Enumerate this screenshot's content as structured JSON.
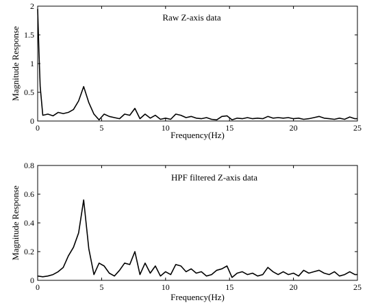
{
  "chart_data": [
    {
      "type": "line",
      "title": "",
      "annotation": "Raw Z-axis data",
      "xlabel": "Frequency(Hz)",
      "ylabel": "Magnitude Response",
      "xlim": [
        0,
        25
      ],
      "ylim": [
        0,
        2
      ],
      "xticks": [
        0,
        5,
        10,
        15,
        20,
        25
      ],
      "yticks": [
        0,
        0.5,
        1,
        1.5,
        2
      ],
      "xtick_labels": [
        "0",
        "5",
        "10",
        "15",
        "20",
        "25"
      ],
      "ytick_labels": [
        "0",
        "0.5",
        "1",
        "1.5",
        "2"
      ],
      "grid": false,
      "series": [
        {
          "x": [
            0,
            0.1,
            0.2,
            0.4,
            0.8,
            1.2,
            1.6,
            2.0,
            2.4,
            2.8,
            3.2,
            3.6,
            4.0,
            4.4,
            4.8,
            5.2,
            5.6,
            6.0,
            6.4,
            6.8,
            7.2,
            7.6,
            8.0,
            8.4,
            8.8,
            9.2,
            9.6,
            10.0,
            10.4,
            10.8,
            11.2,
            11.6,
            12.0,
            12.4,
            12.8,
            13.2,
            13.6,
            14.0,
            14.4,
            14.8,
            15.2,
            15.6,
            16.0,
            16.4,
            16.8,
            17.2,
            17.6,
            18.0,
            18.4,
            18.8,
            19.2,
            19.6,
            20.0,
            20.4,
            20.8,
            21.2,
            21.6,
            22.0,
            22.4,
            22.8,
            23.2,
            23.6,
            24.0,
            24.4,
            24.8,
            25.0
          ],
          "y": [
            1.95,
            1.2,
            0.6,
            0.1,
            0.12,
            0.09,
            0.15,
            0.13,
            0.15,
            0.2,
            0.35,
            0.6,
            0.32,
            0.12,
            0.02,
            0.12,
            0.08,
            0.06,
            0.04,
            0.12,
            0.1,
            0.22,
            0.04,
            0.12,
            0.05,
            0.1,
            0.03,
            0.05,
            0.03,
            0.12,
            0.1,
            0.06,
            0.08,
            0.05,
            0.04,
            0.06,
            0.03,
            0.02,
            0.08,
            0.09,
            0.02,
            0.05,
            0.04,
            0.06,
            0.04,
            0.05,
            0.04,
            0.08,
            0.05,
            0.06,
            0.05,
            0.06,
            0.04,
            0.05,
            0.03,
            0.04,
            0.06,
            0.08,
            0.05,
            0.04,
            0.03,
            0.05,
            0.03,
            0.07,
            0.04,
            0.04
          ]
        }
      ]
    },
    {
      "type": "line",
      "title": "",
      "annotation": "HPF filtered Z-axis data",
      "xlabel": "Frequency(Hz)",
      "ylabel": "Magnitude Response",
      "xlim": [
        0,
        25
      ],
      "ylim": [
        0,
        0.8
      ],
      "xticks": [
        0,
        5,
        10,
        15,
        20,
        25
      ],
      "yticks": [
        0,
        0.2,
        0.4,
        0.6,
        0.8
      ],
      "xtick_labels": [
        "0",
        "5",
        "10",
        "15",
        "20",
        "25"
      ],
      "ytick_labels": [
        "0",
        "0.2",
        "0.4",
        "0.6",
        "0.8"
      ],
      "grid": false,
      "series": [
        {
          "x": [
            0,
            0.4,
            0.8,
            1.2,
            1.6,
            2.0,
            2.4,
            2.8,
            3.2,
            3.6,
            4.0,
            4.4,
            4.8,
            5.2,
            5.6,
            6.0,
            6.4,
            6.8,
            7.2,
            7.6,
            8.0,
            8.4,
            8.8,
            9.2,
            9.6,
            10.0,
            10.4,
            10.8,
            11.2,
            11.6,
            12.0,
            12.4,
            12.8,
            13.2,
            13.6,
            14.0,
            14.4,
            14.8,
            15.2,
            15.6,
            16.0,
            16.4,
            16.8,
            17.2,
            17.6,
            18.0,
            18.4,
            18.8,
            19.2,
            19.6,
            20.0,
            20.4,
            20.8,
            21.2,
            21.6,
            22.0,
            22.4,
            22.8,
            23.2,
            23.6,
            24.0,
            24.4,
            24.8,
            25.0
          ],
          "y": [
            0.03,
            0.025,
            0.03,
            0.04,
            0.06,
            0.09,
            0.17,
            0.23,
            0.33,
            0.56,
            0.22,
            0.04,
            0.12,
            0.1,
            0.05,
            0.03,
            0.07,
            0.12,
            0.11,
            0.2,
            0.04,
            0.12,
            0.05,
            0.1,
            0.03,
            0.06,
            0.04,
            0.11,
            0.1,
            0.06,
            0.08,
            0.05,
            0.06,
            0.03,
            0.04,
            0.07,
            0.08,
            0.1,
            0.02,
            0.05,
            0.06,
            0.04,
            0.05,
            0.03,
            0.04,
            0.09,
            0.06,
            0.04,
            0.06,
            0.04,
            0.05,
            0.03,
            0.07,
            0.05,
            0.06,
            0.07,
            0.05,
            0.04,
            0.06,
            0.03,
            0.04,
            0.06,
            0.04,
            0.04
          ]
        }
      ]
    }
  ]
}
